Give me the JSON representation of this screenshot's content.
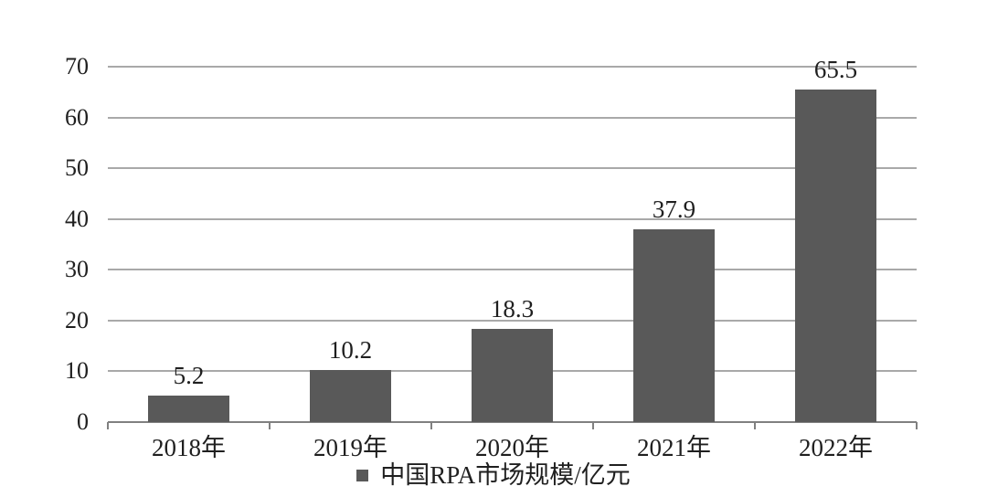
{
  "chart_data": {
    "type": "bar",
    "title": "",
    "categories": [
      "2018年",
      "2019年",
      "2020年",
      "2021年",
      "2022年"
    ],
    "values": [
      5.2,
      10.2,
      18.3,
      37.9,
      65.5
    ],
    "value_labels": [
      "5.2",
      "10.2",
      "18.3",
      "37.9",
      "65.5"
    ],
    "series_name": "中国RPA市场规模/亿元",
    "xlabel": "",
    "ylabel": "",
    "ylim": [
      0,
      70
    ],
    "yticks": [
      0,
      10,
      20,
      30,
      40,
      50,
      60,
      70
    ],
    "grid": "horizontal",
    "legend_position": "bottom-center",
    "colors": {
      "bar": "#595959",
      "gridline": "#a9a9a9",
      "axis": "#808080",
      "text": "#1f1f1f",
      "background": "#ffffff"
    }
  },
  "legend": {
    "marker": "square",
    "label": "中国RPA市场规模/亿元"
  }
}
